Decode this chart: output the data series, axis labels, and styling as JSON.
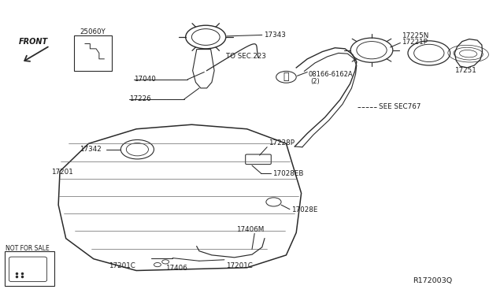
{
  "bg_color": "#ffffff",
  "line_color": "#2a2a2a",
  "text_color": "#1a1a1a",
  "fig_width": 6.4,
  "fig_height": 3.72,
  "dpi": 100,
  "watermark": "R172003Q",
  "not_for_sale": "NOT FOR SALE",
  "front_label": "FRONT",
  "ref_label": "25060Y",
  "to_sec223": "TO SEC.223",
  "see_sec767": "SEE SEC767"
}
